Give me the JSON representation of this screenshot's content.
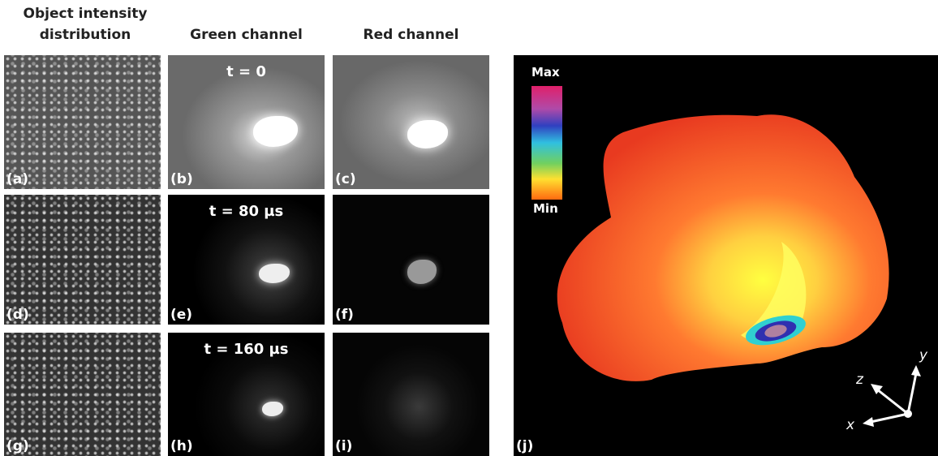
{
  "headers": [
    "Object intensity distribution",
    "Green channel",
    "Red channel"
  ],
  "panels": [
    {
      "label": "(a)"
    },
    {
      "label": "(b)",
      "time": "t = 0"
    },
    {
      "label": "(c)"
    },
    {
      "label": "(d)"
    },
    {
      "label": "(e)",
      "time": "t = 80 µs"
    },
    {
      "label": "(f)"
    },
    {
      "label": "(g)"
    },
    {
      "label": "(h)",
      "time": "t = 160 µs"
    },
    {
      "label": "(i)"
    },
    {
      "label": "(j)"
    }
  ],
  "colorbar": {
    "max": "Max",
    "min": "Min"
  },
  "axes": {
    "x": "x",
    "y": "y",
    "z": "z"
  }
}
